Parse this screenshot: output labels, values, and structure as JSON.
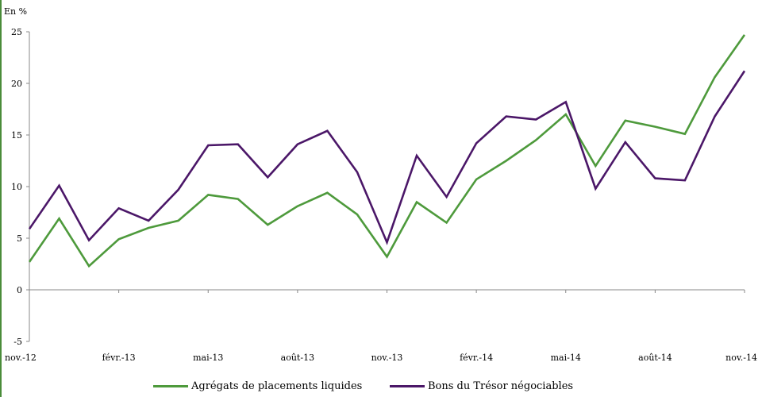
{
  "chart_data": {
    "type": "line",
    "ylabel": "En %",
    "ylim": [
      -5,
      25
    ],
    "yticks": [
      -5,
      0,
      5,
      10,
      15,
      20,
      25
    ],
    "x": [
      "nov.-12",
      "déc.-12",
      "janv.-13",
      "févr.-13",
      "mars-13",
      "avr.-13",
      "mai-13",
      "juin-13",
      "juil.-13",
      "août-13",
      "sept.-13",
      "oct.-13",
      "nov.-13",
      "déc.-13",
      "janv.-14",
      "févr.-14",
      "mars-14",
      "avr.-14",
      "mai-14",
      "juin-14",
      "juil.-14",
      "août-14",
      "sept.-14",
      "oct.-14",
      "nov.-14"
    ],
    "xtick_labels": [
      "nov.-12",
      "févr.-13",
      "mai-13",
      "août-13",
      "nov.-13",
      "févr.-14",
      "mai-14",
      "août-14",
      "nov.-14"
    ],
    "grid": false,
    "legend_position": "bottom",
    "series": [
      {
        "name": "Agrégats de placements liquides",
        "color": "#4e9a3c",
        "values": [
          2.7,
          6.9,
          2.3,
          4.9,
          6.0,
          6.7,
          9.2,
          8.8,
          6.3,
          8.1,
          9.4,
          7.3,
          3.2,
          8.5,
          6.5,
          10.7,
          12.5,
          14.5,
          17.0,
          12.0,
          16.4,
          15.8,
          15.1,
          20.6,
          24.7
        ]
      },
      {
        "name": "Bons du Trésor négociables",
        "color": "#4b1768",
        "values": [
          5.9,
          10.1,
          4.8,
          7.9,
          6.7,
          9.7,
          14.0,
          14.1,
          10.9,
          14.1,
          15.4,
          11.4,
          4.6,
          13.0,
          9.0,
          14.2,
          16.8,
          16.5,
          18.2,
          9.8,
          14.3,
          10.8,
          10.6,
          16.8,
          21.2
        ]
      }
    ]
  }
}
